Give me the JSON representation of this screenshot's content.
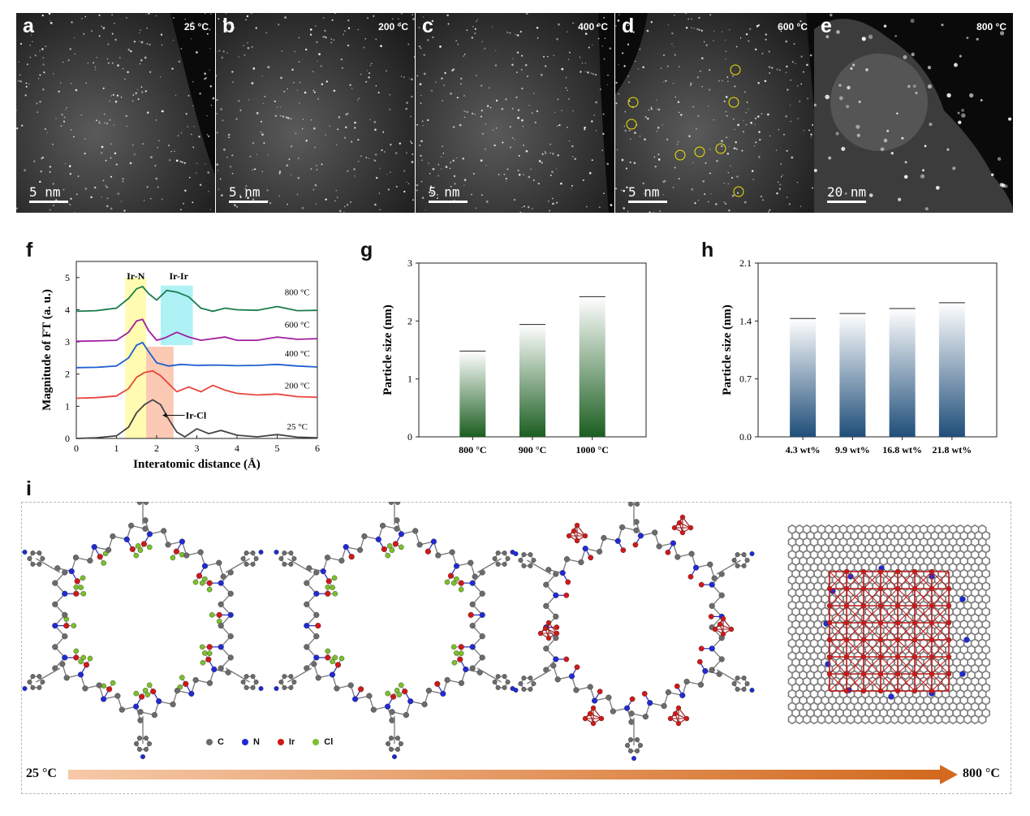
{
  "stem_panels": [
    {
      "letter": "a",
      "temperature": "25 °C",
      "scale": "5 nm",
      "particles": false
    },
    {
      "letter": "b",
      "temperature": "200 °C",
      "scale": "5 nm",
      "particles": false
    },
    {
      "letter": "c",
      "temperature": "400 °C",
      "scale": "5 nm",
      "particles": false
    },
    {
      "letter": "d",
      "temperature": "600 °C",
      "scale": "5 nm",
      "particles": true
    },
    {
      "letter": "e",
      "temperature": "800 °C",
      "scale": "20 nm",
      "particles": true
    }
  ],
  "panel_f": {
    "letter": "f",
    "xlabel": "Interatomic distance (Å)",
    "ylabel": "Magnitude of FT (a. u.)",
    "annotations": {
      "ir_n": "Ir-N",
      "ir_ir": "Ir-Ir",
      "ir_cl": "Ir-Cl"
    },
    "series_labels": [
      "800 °C",
      "600 °C",
      "400 °C",
      "200 °C",
      "25 °C"
    ],
    "colors": {
      "800": "#1a7a4a",
      "600": "#a01ea0",
      "400": "#1e5fd0",
      "200": "#e8453c",
      "25": "#444444"
    }
  },
  "panel_g": {
    "letter": "g",
    "ylabel": "Particle size (nm)"
  },
  "panel_h": {
    "letter": "h",
    "ylabel": "Particle size (nm)"
  },
  "chart_data": [
    {
      "type": "line",
      "xlim": [
        0,
        6
      ],
      "ylim": [
        0,
        5.5
      ],
      "xticks": [
        0,
        1,
        2,
        3,
        4,
        5,
        6
      ],
      "yticks": [
        0,
        1,
        2,
        3,
        4,
        5
      ],
      "series": [
        {
          "name": "800 °C",
          "x": [
            0,
            0.5,
            1.0,
            1.3,
            1.5,
            1.65,
            1.8,
            2.0,
            2.25,
            2.5,
            2.8,
            3.1,
            3.4,
            3.7,
            4.0,
            4.5,
            5.0,
            5.5,
            6.0
          ],
          "y": [
            3.95,
            3.97,
            4.05,
            4.35,
            4.65,
            4.72,
            4.5,
            4.3,
            4.6,
            4.55,
            4.4,
            4.05,
            3.95,
            4.05,
            4.0,
            3.98,
            4.1,
            3.97,
            3.98
          ]
        },
        {
          "name": "600 °C",
          "x": [
            0,
            0.5,
            1.0,
            1.3,
            1.5,
            1.65,
            1.8,
            2.0,
            2.2,
            2.5,
            2.8,
            3.1,
            3.4,
            3.7,
            4.0,
            4.5,
            5.0,
            5.5,
            6.0
          ],
          "y": [
            3.02,
            3.03,
            3.05,
            3.3,
            3.65,
            3.7,
            3.35,
            3.05,
            3.12,
            3.3,
            3.15,
            3.05,
            3.1,
            3.15,
            3.05,
            3.05,
            3.15,
            3.08,
            3.1
          ]
        },
        {
          "name": "400 °C",
          "x": [
            0,
            0.5,
            1.0,
            1.3,
            1.5,
            1.65,
            1.8,
            2.0,
            2.3,
            2.6,
            3.0,
            3.5,
            4.0,
            4.5,
            5.0,
            5.5,
            6.0
          ],
          "y": [
            2.2,
            2.21,
            2.25,
            2.5,
            2.9,
            2.98,
            2.7,
            2.35,
            2.25,
            2.3,
            2.27,
            2.28,
            2.26,
            2.27,
            2.3,
            2.25,
            2.22
          ]
        },
        {
          "name": "200 °C",
          "x": [
            0,
            0.5,
            1.0,
            1.3,
            1.5,
            1.7,
            1.9,
            2.1,
            2.3,
            2.5,
            2.8,
            3.1,
            3.4,
            3.7,
            4.0,
            4.5,
            5.0,
            5.5,
            6.0
          ],
          "y": [
            1.25,
            1.27,
            1.32,
            1.55,
            1.9,
            2.05,
            2.1,
            1.95,
            1.7,
            1.45,
            1.6,
            1.45,
            1.65,
            1.5,
            1.4,
            1.35,
            1.38,
            1.3,
            1.28
          ]
        },
        {
          "name": "25 °C",
          "x": [
            0,
            0.5,
            1.0,
            1.3,
            1.5,
            1.7,
            1.9,
            2.1,
            2.3,
            2.5,
            2.7,
            3.0,
            3.3,
            3.6,
            4.0,
            4.5,
            5.0,
            5.5,
            6.0
          ],
          "y": [
            0.0,
            0.02,
            0.08,
            0.35,
            0.8,
            1.05,
            1.2,
            1.05,
            0.6,
            0.2,
            0.05,
            0.3,
            0.15,
            0.25,
            0.1,
            0.05,
            0.12,
            0.04,
            0.02
          ]
        }
      ]
    },
    {
      "type": "bar",
      "categories": [
        "800 °C",
        "900 °C",
        "1000 °C"
      ],
      "values": [
        1.48,
        1.94,
        2.42
      ],
      "ylim": [
        0,
        3
      ],
      "yticks": [
        0,
        1,
        2,
        3
      ],
      "ylabel": "Particle size (nm)",
      "color": "#1b5e20"
    },
    {
      "type": "bar",
      "categories": [
        "4.3 wt%",
        "9.9 wt%",
        "16.8 wt%",
        "21.8 wt%"
      ],
      "values": [
        1.43,
        1.49,
        1.55,
        1.62
      ],
      "ylim": [
        0,
        2.1
      ],
      "yticks": [
        "0.0",
        "0.7",
        "1.4",
        "2.1"
      ],
      "ylabel": "Particle size (nm)",
      "color": "#1f4e79"
    }
  ],
  "schematic": {
    "letter": "i",
    "legend": [
      {
        "label": "C",
        "color": "#6b6b6b"
      },
      {
        "label": "N",
        "color": "#1f2ad6"
      },
      {
        "label": "Ir",
        "color": "#d01818"
      },
      {
        "label": "Cl",
        "color": "#7ac02a"
      }
    ],
    "start_temp": "25 °C",
    "end_temp": "800 °C"
  }
}
